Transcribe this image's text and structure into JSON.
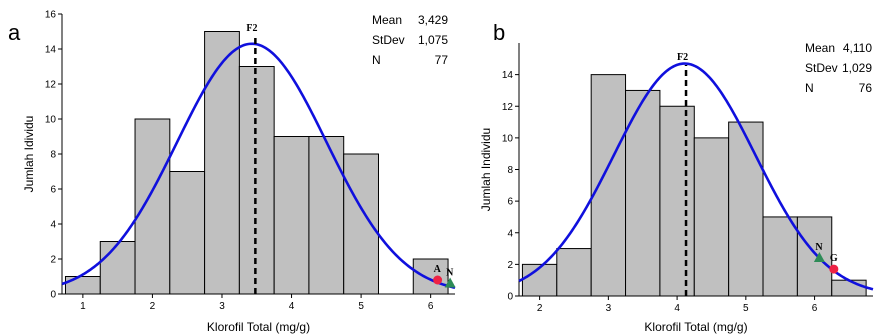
{
  "chart_data": [
    {
      "type": "bar",
      "panel_label": "a",
      "xlabel": "Klorofil Total (mg/g)",
      "ylabel": "Jumlah Idividu",
      "xlim": [
        0.7,
        6.35
      ],
      "ylim": [
        0,
        16
      ],
      "xticks": [
        "1",
        "2",
        "3",
        "4",
        "5",
        "6"
      ],
      "yticks": [
        "0",
        "2",
        "4",
        "6",
        "8",
        "10",
        "12",
        "14",
        "16"
      ],
      "bins": [
        {
          "start": 0.75,
          "end": 1.25,
          "count": 1
        },
        {
          "start": 1.25,
          "end": 1.75,
          "count": 3
        },
        {
          "start": 1.75,
          "end": 2.25,
          "count": 10
        },
        {
          "start": 2.25,
          "end": 2.75,
          "count": 7
        },
        {
          "start": 2.75,
          "end": 3.25,
          "count": 15
        },
        {
          "start": 3.25,
          "end": 3.75,
          "count": 13
        },
        {
          "start": 3.75,
          "end": 4.25,
          "count": 9
        },
        {
          "start": 4.25,
          "end": 4.75,
          "count": 9
        },
        {
          "start": 4.75,
          "end": 5.25,
          "count": 8
        },
        {
          "start": 5.25,
          "end": 5.75,
          "count": 0
        },
        {
          "start": 5.75,
          "end": 6.25,
          "count": 2
        }
      ],
      "stats": [
        {
          "label": "Mean",
          "value": "3,429"
        },
        {
          "label": "StDev",
          "value": "1,075"
        },
        {
          "label": "N",
          "value": "77"
        }
      ],
      "mean": 3.429,
      "stdev": 1.075,
      "n": 77,
      "curve_peak": 14.3,
      "curve_color": "#1010dd",
      "bar_fill": "#c0c0c0",
      "reference_line": {
        "x": 3.48,
        "label": "F2"
      },
      "markers": [
        {
          "label": "A",
          "x": 6.1,
          "y": 0.8,
          "shape": "circle",
          "color": "#ee2244"
        },
        {
          "label": "N",
          "x": 6.28,
          "y": 0.6,
          "shape": "triangle",
          "color": "#2e8b57"
        }
      ]
    },
    {
      "type": "bar",
      "panel_label": "b",
      "xlabel": "Klorofil Total (mg/g)",
      "ylabel": "Jumlah Individu",
      "xlim": [
        1.7,
        6.85
      ],
      "ylim": [
        0,
        16
      ],
      "xticks": [
        "2",
        "3",
        "4",
        "5",
        "6"
      ],
      "yticks": [
        "0",
        "2",
        "4",
        "6",
        "8",
        "10",
        "12",
        "14"
      ],
      "bins": [
        {
          "start": 1.75,
          "end": 2.25,
          "count": 2
        },
        {
          "start": 2.25,
          "end": 2.75,
          "count": 3
        },
        {
          "start": 2.75,
          "end": 3.25,
          "count": 14
        },
        {
          "start": 3.25,
          "end": 3.75,
          "count": 13
        },
        {
          "start": 3.75,
          "end": 4.25,
          "count": 12
        },
        {
          "start": 4.25,
          "end": 4.75,
          "count": 10
        },
        {
          "start": 4.75,
          "end": 5.25,
          "count": 11
        },
        {
          "start": 5.25,
          "end": 5.75,
          "count": 5
        },
        {
          "start": 5.75,
          "end": 6.25,
          "count": 5
        },
        {
          "start": 6.25,
          "end": 6.75,
          "count": 1
        }
      ],
      "stats": [
        {
          "label": "Mean",
          "value": "4,110"
        },
        {
          "label": "StDev",
          "value": "1,029"
        },
        {
          "label": "N",
          "value": "76"
        }
      ],
      "mean": 4.11,
      "stdev": 1.029,
      "n": 76,
      "curve_peak": 14.7,
      "curve_color": "#1010dd",
      "bar_fill": "#c0c0c0",
      "reference_line": {
        "x": 4.13,
        "label": "F2"
      },
      "markers": [
        {
          "label": "N",
          "x": 6.07,
          "y": 2.4,
          "shape": "triangle",
          "color": "#2e8b57"
        },
        {
          "label": "G",
          "x": 6.28,
          "y": 1.7,
          "shape": "circle",
          "color": "#ee2244"
        }
      ]
    }
  ]
}
